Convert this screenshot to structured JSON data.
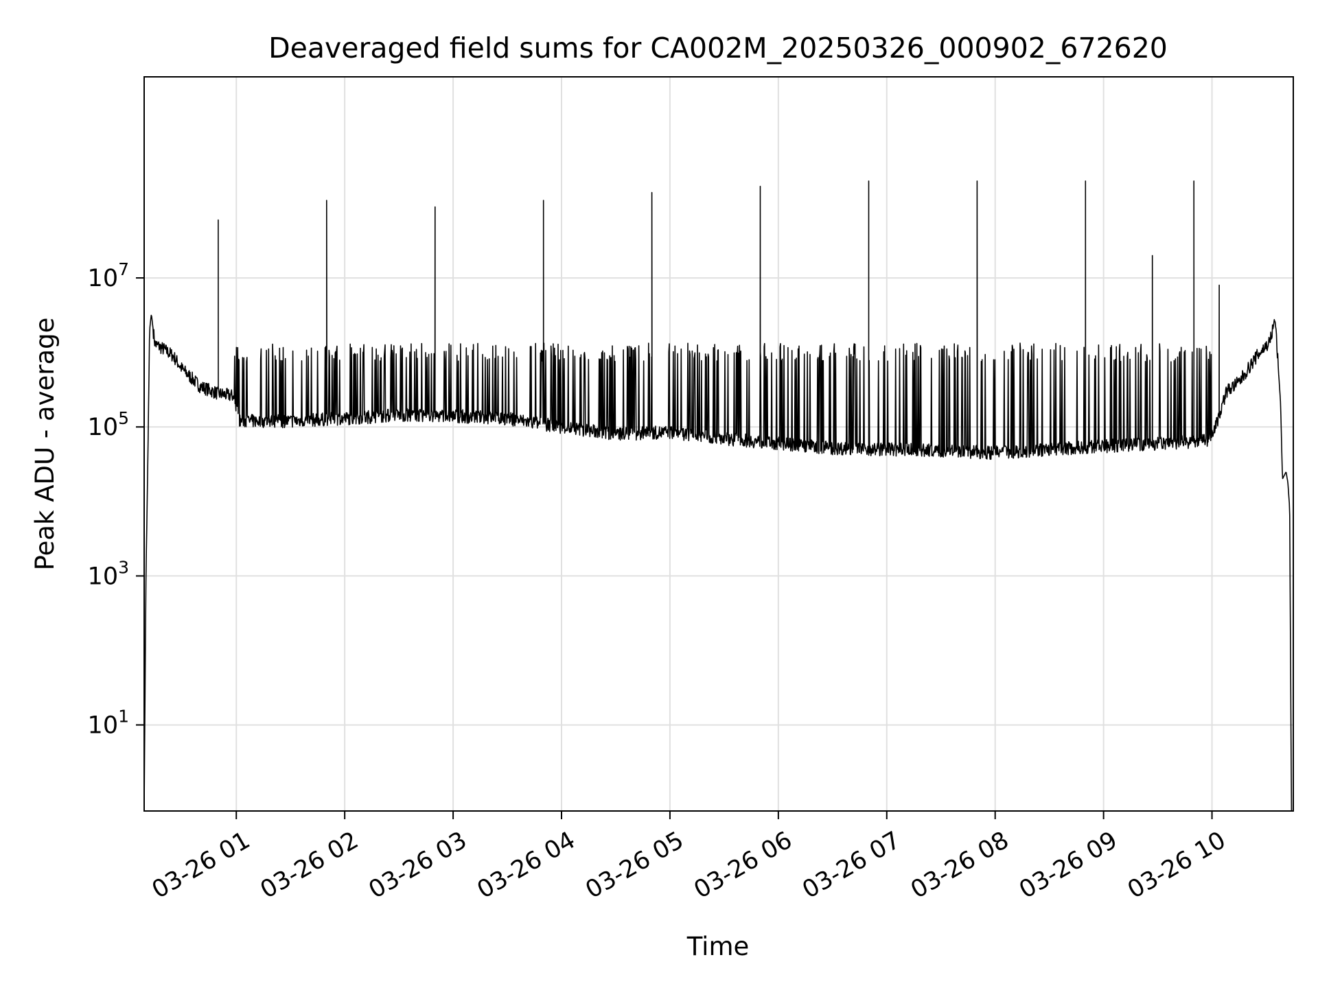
{
  "chart_data": {
    "type": "line",
    "title": "Deaveraged field sums for CA002M_20250326_000902_672620",
    "xlabel": "Time",
    "ylabel": "Peak ADU - average",
    "yscale": "log",
    "ylim": [
      0.7,
      5000000000
    ],
    "xlim": [
      "2025-03-26 00:09:00",
      "2025-03-26 10:45:00"
    ],
    "grid": true,
    "x_ticks": [
      {
        "value": "2025-03-26 01:00",
        "label": "03-26 01"
      },
      {
        "value": "2025-03-26 02:00",
        "label": "03-26 02"
      },
      {
        "value": "2025-03-26 03:00",
        "label": "03-26 03"
      },
      {
        "value": "2025-03-26 04:00",
        "label": "03-26 04"
      },
      {
        "value": "2025-03-26 05:00",
        "label": "03-26 05"
      },
      {
        "value": "2025-03-26 06:00",
        "label": "03-26 06"
      },
      {
        "value": "2025-03-26 07:00",
        "label": "03-26 07"
      },
      {
        "value": "2025-03-26 08:00",
        "label": "03-26 08"
      },
      {
        "value": "2025-03-26 09:00",
        "label": "03-26 09"
      },
      {
        "value": "2025-03-26 10:00",
        "label": "03-26 10"
      }
    ],
    "y_ticks": [
      {
        "value": 10,
        "base": "10",
        "exp": "1"
      },
      {
        "value": 1000,
        "base": "10",
        "exp": "3"
      },
      {
        "value": 100000,
        "base": "10",
        "exp": "5"
      },
      {
        "value": 10000000,
        "base": "10",
        "exp": "7"
      }
    ],
    "series": [
      {
        "color": "#000000",
        "baseline": [
          [
            "2025-03-26 00:09",
            0.7
          ],
          [
            "2025-03-26 00:10",
            1000
          ],
          [
            "2025-03-26 00:11",
            30000
          ],
          [
            "2025-03-26 00:12",
            2000000
          ],
          [
            "2025-03-26 00:13",
            3300000
          ],
          [
            "2025-03-26 00:14",
            2000000
          ],
          [
            "2025-03-26 00:15",
            1300000
          ],
          [
            "2025-03-26 00:20",
            1100000
          ],
          [
            "2025-03-26 00:25",
            900000
          ],
          [
            "2025-03-26 00:30",
            600000
          ],
          [
            "2025-03-26 00:40",
            350000
          ],
          [
            "2025-03-26 00:50",
            280000
          ],
          [
            "2025-03-26 00:58",
            260000
          ],
          [
            "2025-03-26 01:02",
            120000
          ],
          [
            "2025-03-26 01:30",
            120000
          ],
          [
            "2025-03-26 02:00",
            130000
          ],
          [
            "2025-03-26 02:30",
            145000
          ],
          [
            "2025-03-26 03:00",
            140000
          ],
          [
            "2025-03-26 03:30",
            130000
          ],
          [
            "2025-03-26 04:00",
            100000
          ],
          [
            "2025-03-26 04:30",
            80000
          ],
          [
            "2025-03-26 05:00",
            85000
          ],
          [
            "2025-03-26 05:30",
            70000
          ],
          [
            "2025-03-26 06:00",
            60000
          ],
          [
            "2025-03-26 06:30",
            52000
          ],
          [
            "2025-03-26 07:00",
            50000
          ],
          [
            "2025-03-26 07:30",
            48000
          ],
          [
            "2025-03-26 08:00",
            45000
          ],
          [
            "2025-03-26 08:30",
            50000
          ],
          [
            "2025-03-26 09:00",
            55000
          ],
          [
            "2025-03-26 09:30",
            60000
          ],
          [
            "2025-03-26 09:58",
            65000
          ],
          [
            "2025-03-26 10:03",
            120000
          ],
          [
            "2025-03-26 10:08",
            300000
          ],
          [
            "2025-03-26 10:15",
            400000
          ],
          [
            "2025-03-26 10:25",
            900000
          ],
          [
            "2025-03-26 10:32",
            1400000
          ],
          [
            "2025-03-26 10:35",
            2800000
          ],
          [
            "2025-03-26 10:38",
            200000
          ],
          [
            "2025-03-26 10:39",
            20000
          ],
          [
            "2025-03-26 10:41",
            25000
          ],
          [
            "2025-03-26 10:42",
            18000
          ],
          [
            "2025-03-26 10:43",
            8000
          ],
          [
            "2025-03-26 10:44",
            0.7
          ]
        ],
        "spikes": [
          [
            "2025-03-26 00:50",
            60000000
          ],
          [
            "2025-03-26 01:50",
            110000000
          ],
          [
            "2025-03-26 02:50",
            90000000
          ],
          [
            "2025-03-26 03:50",
            110000000
          ],
          [
            "2025-03-26 04:50",
            140000000
          ],
          [
            "2025-03-26 05:50",
            170000000
          ],
          [
            "2025-03-26 06:50",
            200000000
          ],
          [
            "2025-03-26 07:50",
            200000000
          ],
          [
            "2025-03-26 08:50",
            200000000
          ],
          [
            "2025-03-26 09:27",
            20000000
          ],
          [
            "2025-03-26 09:50",
            200000000
          ],
          [
            "2025-03-26 10:04",
            8000000
          ]
        ],
        "noise_spike_level": 1000000
      }
    ]
  }
}
